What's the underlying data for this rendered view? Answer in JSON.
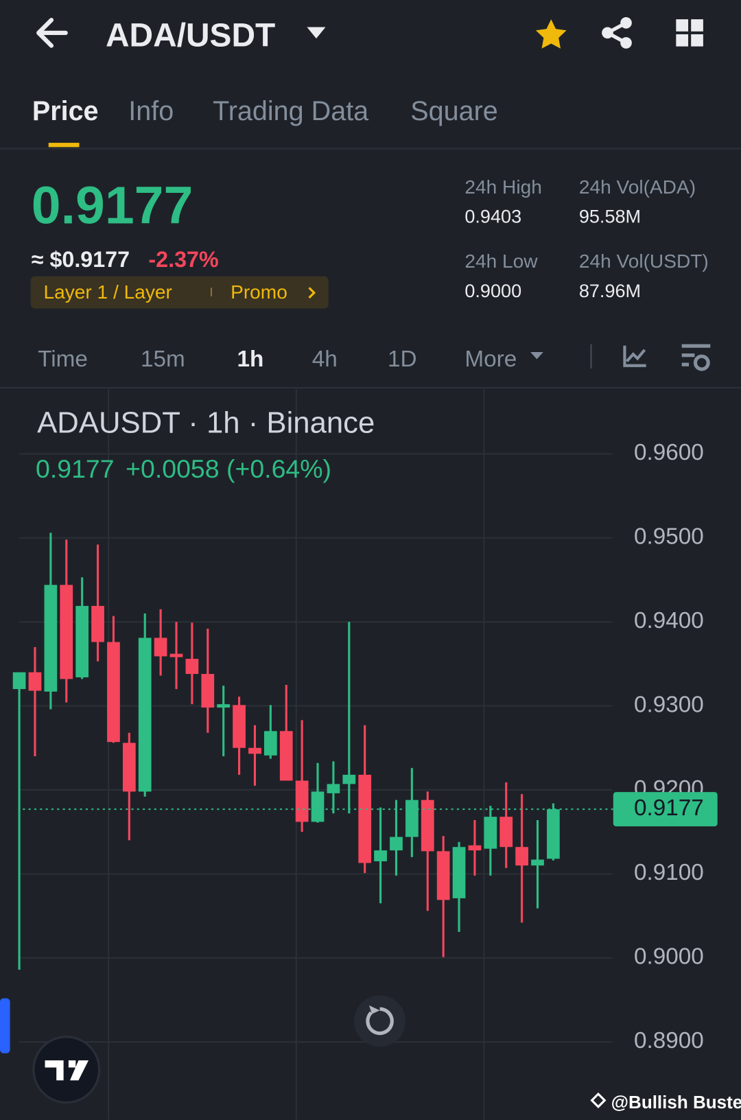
{
  "header": {
    "pair": "ADA/USDT"
  },
  "tabs": [
    "Price",
    "Info",
    "Trading Data",
    "Square"
  ],
  "price": {
    "last": "0.9177",
    "usd": "≈ $0.9177",
    "change": "-2.37%",
    "tags": [
      "Layer 1 / Layer",
      "Promo"
    ]
  },
  "stats": [
    {
      "label": "24h High",
      "value": "0.9403"
    },
    {
      "label": "24h Vol(ADA)",
      "value": "95.58M"
    },
    {
      "label": "24h Low",
      "value": "0.9000"
    },
    {
      "label": "24h Vol(USDT)",
      "value": "87.96M"
    }
  ],
  "intervals": [
    "Time",
    "15m",
    "1h",
    "4h",
    "1D",
    "More"
  ],
  "watermark": "@Bullish Buster",
  "chart_data": {
    "type": "candlestick",
    "title": "ADAUSDT · 1h · Binance",
    "legend_price": "0.9177",
    "legend_change": "+0.0058 (+0.64%)",
    "up_color": "#2ebd85",
    "down_color": "#f6465d",
    "open": [
      0.932,
      0.934,
      0.9317,
      0.9444,
      0.9334,
      0.9419,
      0.9376,
      0.9256,
      0.9198,
      0.9381,
      0.9362,
      0.9356,
      0.9338,
      0.9298,
      0.9301,
      0.925,
      0.9241,
      0.927,
      0.9211,
      0.9162,
      0.9196,
      0.9207,
      0.9218,
      0.9115,
      0.9128,
      0.9144,
      0.9188,
      0.9127,
      0.9071,
      0.9134,
      0.913,
      0.9168,
      0.9132,
      0.911,
      0.9118
    ],
    "high": [
      0.934,
      0.937,
      0.9506,
      0.9498,
      0.9453,
      0.9492,
      0.9407,
      0.9268,
      0.941,
      0.9415,
      0.94,
      0.9399,
      0.9392,
      0.9324,
      0.9311,
      0.9277,
      0.9301,
      0.9325,
      0.9283,
      0.9232,
      0.9234,
      0.94,
      0.9277,
      0.9179,
      0.9188,
      0.9226,
      0.9198,
      0.9145,
      0.9138,
      0.9164,
      0.9181,
      0.9209,
      0.9195,
      0.9164,
      0.9184
    ],
    "low": [
      0.8986,
      0.924,
      0.9296,
      0.9304,
      0.9332,
      0.9353,
      0.9256,
      0.914,
      0.9192,
      0.9336,
      0.932,
      0.9302,
      0.9268,
      0.924,
      0.9218,
      0.9205,
      0.9237,
      0.9211,
      0.915,
      0.9161,
      0.9172,
      0.9172,
      0.9101,
      0.9065,
      0.9098,
      0.912,
      0.9056,
      0.9001,
      0.9031,
      0.9098,
      0.9098,
      0.9107,
      0.9042,
      0.9059,
      0.9116
    ],
    "close": [
      0.934,
      0.9318,
      0.9444,
      0.9332,
      0.9419,
      0.9376,
      0.9257,
      0.9198,
      0.9381,
      0.9359,
      0.9358,
      0.9338,
      0.9298,
      0.9302,
      0.925,
      0.9243,
      0.927,
      0.9211,
      0.9162,
      0.9198,
      0.9207,
      0.9218,
      0.9113,
      0.9128,
      0.9144,
      0.9188,
      0.9127,
      0.9069,
      0.9132,
      0.9128,
      0.9168,
      0.9132,
      0.911,
      0.9117,
      0.9177
    ],
    "ylim": [
      0.881,
      0.9677
    ],
    "yticks": [
      {
        "value": 0.96,
        "label": "0.9600"
      },
      {
        "value": 0.95,
        "label": "0.9500"
      },
      {
        "value": 0.94,
        "label": "0.9400"
      },
      {
        "value": 0.93,
        "label": "0.9300"
      },
      {
        "value": 0.92,
        "label": "0.9200"
      },
      {
        "value": 0.91,
        "label": "0.9100"
      },
      {
        "value": 0.9,
        "label": "0.9000"
      },
      {
        "value": 0.89,
        "label": "0.8900"
      }
    ],
    "last_price": {
      "value": 0.9177,
      "label": "0.9177"
    },
    "grid": true
  }
}
